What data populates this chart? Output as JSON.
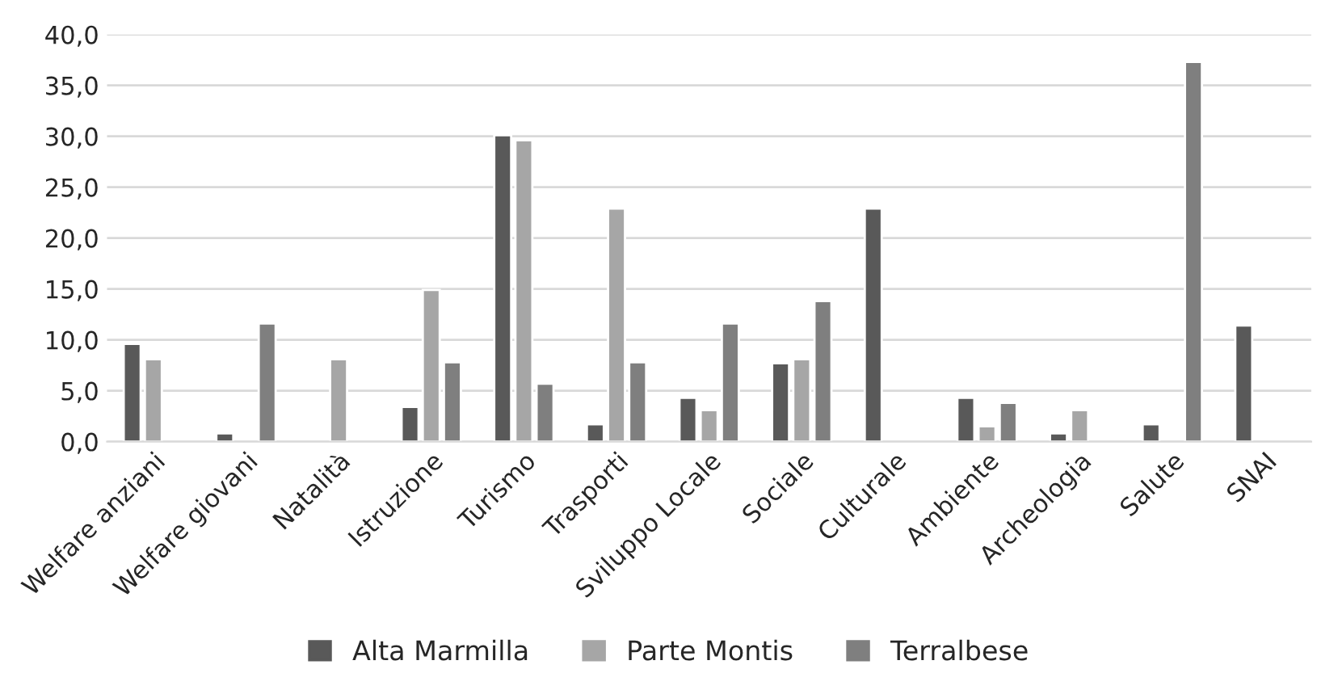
{
  "chart_data": {
    "type": "bar",
    "categories": [
      "Welfare anziani",
      "Welfare giovani",
      "Natalità",
      "Istruzione",
      "Turismo",
      "Trasporti",
      "Sviluppo Locale",
      "Sociale",
      "Culturale",
      "Ambiente",
      "Archeologia",
      "Salute",
      "SNAI"
    ],
    "series": [
      {
        "name": "Alta Marmilla",
        "color": "#595959",
        "values": [
          9.6,
          0.8,
          null,
          3.4,
          30.1,
          1.7,
          4.3,
          7.7,
          22.9,
          4.3,
          0.8,
          1.7,
          11.4
        ]
      },
      {
        "name": "Parte Montis",
        "color": "#a6a6a6",
        "values": [
          8.1,
          null,
          8.1,
          14.9,
          29.6,
          22.9,
          3.1,
          8.1,
          null,
          1.5,
          3.1,
          null,
          null
        ]
      },
      {
        "name": "Terralbese",
        "color": "#7f7f7f",
        "values": [
          null,
          11.6,
          null,
          7.8,
          5.7,
          7.8,
          11.6,
          13.8,
          null,
          3.8,
          null,
          37.3,
          null
        ]
      }
    ],
    "ylim": [
      0,
      40
    ],
    "yticks": [
      {
        "value": 0,
        "label": "0,0"
      },
      {
        "value": 5,
        "label": "5,0"
      },
      {
        "value": 10,
        "label": "10,0"
      },
      {
        "value": 15,
        "label": "15,0"
      },
      {
        "value": 20,
        "label": "20,0"
      },
      {
        "value": 25,
        "label": "25,0"
      },
      {
        "value": 30,
        "label": "30,0"
      },
      {
        "value": 35,
        "label": "35,0"
      },
      {
        "value": 40,
        "label": "40,0"
      }
    ],
    "grid": "y",
    "legend": "bottom"
  }
}
